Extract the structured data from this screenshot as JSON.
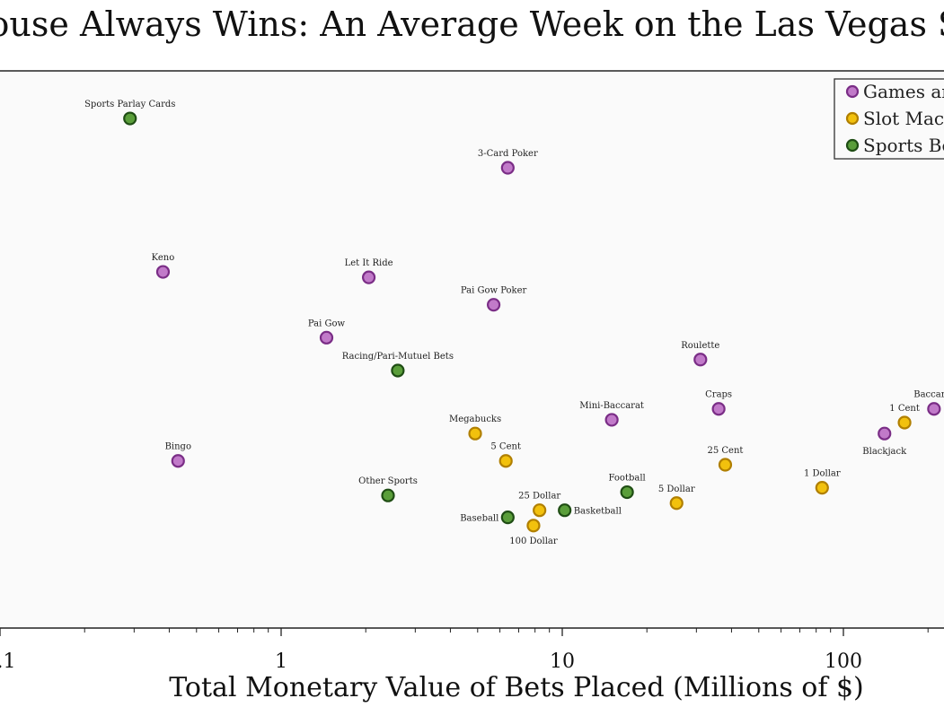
{
  "chart_data": {
    "type": "scatter",
    "title": "The House Always Wins: An Average Week on the Las Vegas Strip",
    "xlabel": "Total Monetary Value of Bets Placed (Millions of $)",
    "ylabel": "",
    "xscale": "log",
    "x_ticks": [
      {
        "value": 0.1,
        "label": "0.1"
      },
      {
        "value": 1,
        "label": "1"
      },
      {
        "value": 10,
        "label": "10"
      },
      {
        "value": 100,
        "label": "100"
      }
    ],
    "legend": {
      "placement": "top-right"
    },
    "grid": false,
    "series": [
      {
        "name": "Games and Tables",
        "color": "#c17ac9",
        "edge": "#7a2d86",
        "points": [
          {
            "label": "3-Card Poker",
            "x": 6.4,
            "y": 0.84
          },
          {
            "label": "Keno",
            "x": 0.38,
            "y": 0.65
          },
          {
            "label": "Let It Ride",
            "x": 2.05,
            "y": 0.64
          },
          {
            "label": "Pai Gow Poker",
            "x": 5.7,
            "y": 0.59
          },
          {
            "label": "Pai Gow",
            "x": 1.45,
            "y": 0.53
          },
          {
            "label": "Roulette",
            "x": 31,
            "y": 0.49
          },
          {
            "label": "Craps",
            "x": 36,
            "y": 0.4
          },
          {
            "label": "Mini-Baccarat",
            "x": 15,
            "y": 0.38
          },
          {
            "label": "Baccarat",
            "x": 210,
            "y": 0.4
          },
          {
            "label": "Blackjack",
            "x": 140,
            "y": 0.355
          },
          {
            "label": "Bingo",
            "x": 0.43,
            "y": 0.305
          }
        ]
      },
      {
        "name": "Slot Machines",
        "color": "#f2c10d",
        "edge": "#b07f00",
        "points": [
          {
            "label": "Megabucks",
            "x": 4.9,
            "y": 0.355
          },
          {
            "label": "1 Cent",
            "x": 165,
            "y": 0.375
          },
          {
            "label": "5 Cent",
            "x": 6.3,
            "y": 0.305
          },
          {
            "label": "25 Cent",
            "x": 38,
            "y": 0.298
          },
          {
            "label": "1 Dollar",
            "x": 84,
            "y": 0.256
          },
          {
            "label": "5 Dollar",
            "x": 25.5,
            "y": 0.228
          },
          {
            "label": "25 Dollar",
            "x": 8.3,
            "y": 0.215
          },
          {
            "label": "100 Dollar",
            "x": 7.9,
            "y": 0.187
          }
        ]
      },
      {
        "name": "Sports Betting",
        "color": "#5a9e3a",
        "edge": "#1f4d14",
        "points": [
          {
            "label": "Sports Parlay Cards",
            "x": 0.29,
            "y": 0.93
          },
          {
            "label": "Racing/Pari-Mutuel Bets",
            "x": 2.6,
            "y": 0.47
          },
          {
            "label": "Other Sports",
            "x": 2.4,
            "y": 0.242
          },
          {
            "label": "Football",
            "x": 17,
            "y": 0.248
          },
          {
            "label": "Basketball",
            "x": 10.2,
            "y": 0.215
          },
          {
            "label": "Baseball",
            "x": 6.4,
            "y": 0.202
          }
        ]
      }
    ]
  }
}
